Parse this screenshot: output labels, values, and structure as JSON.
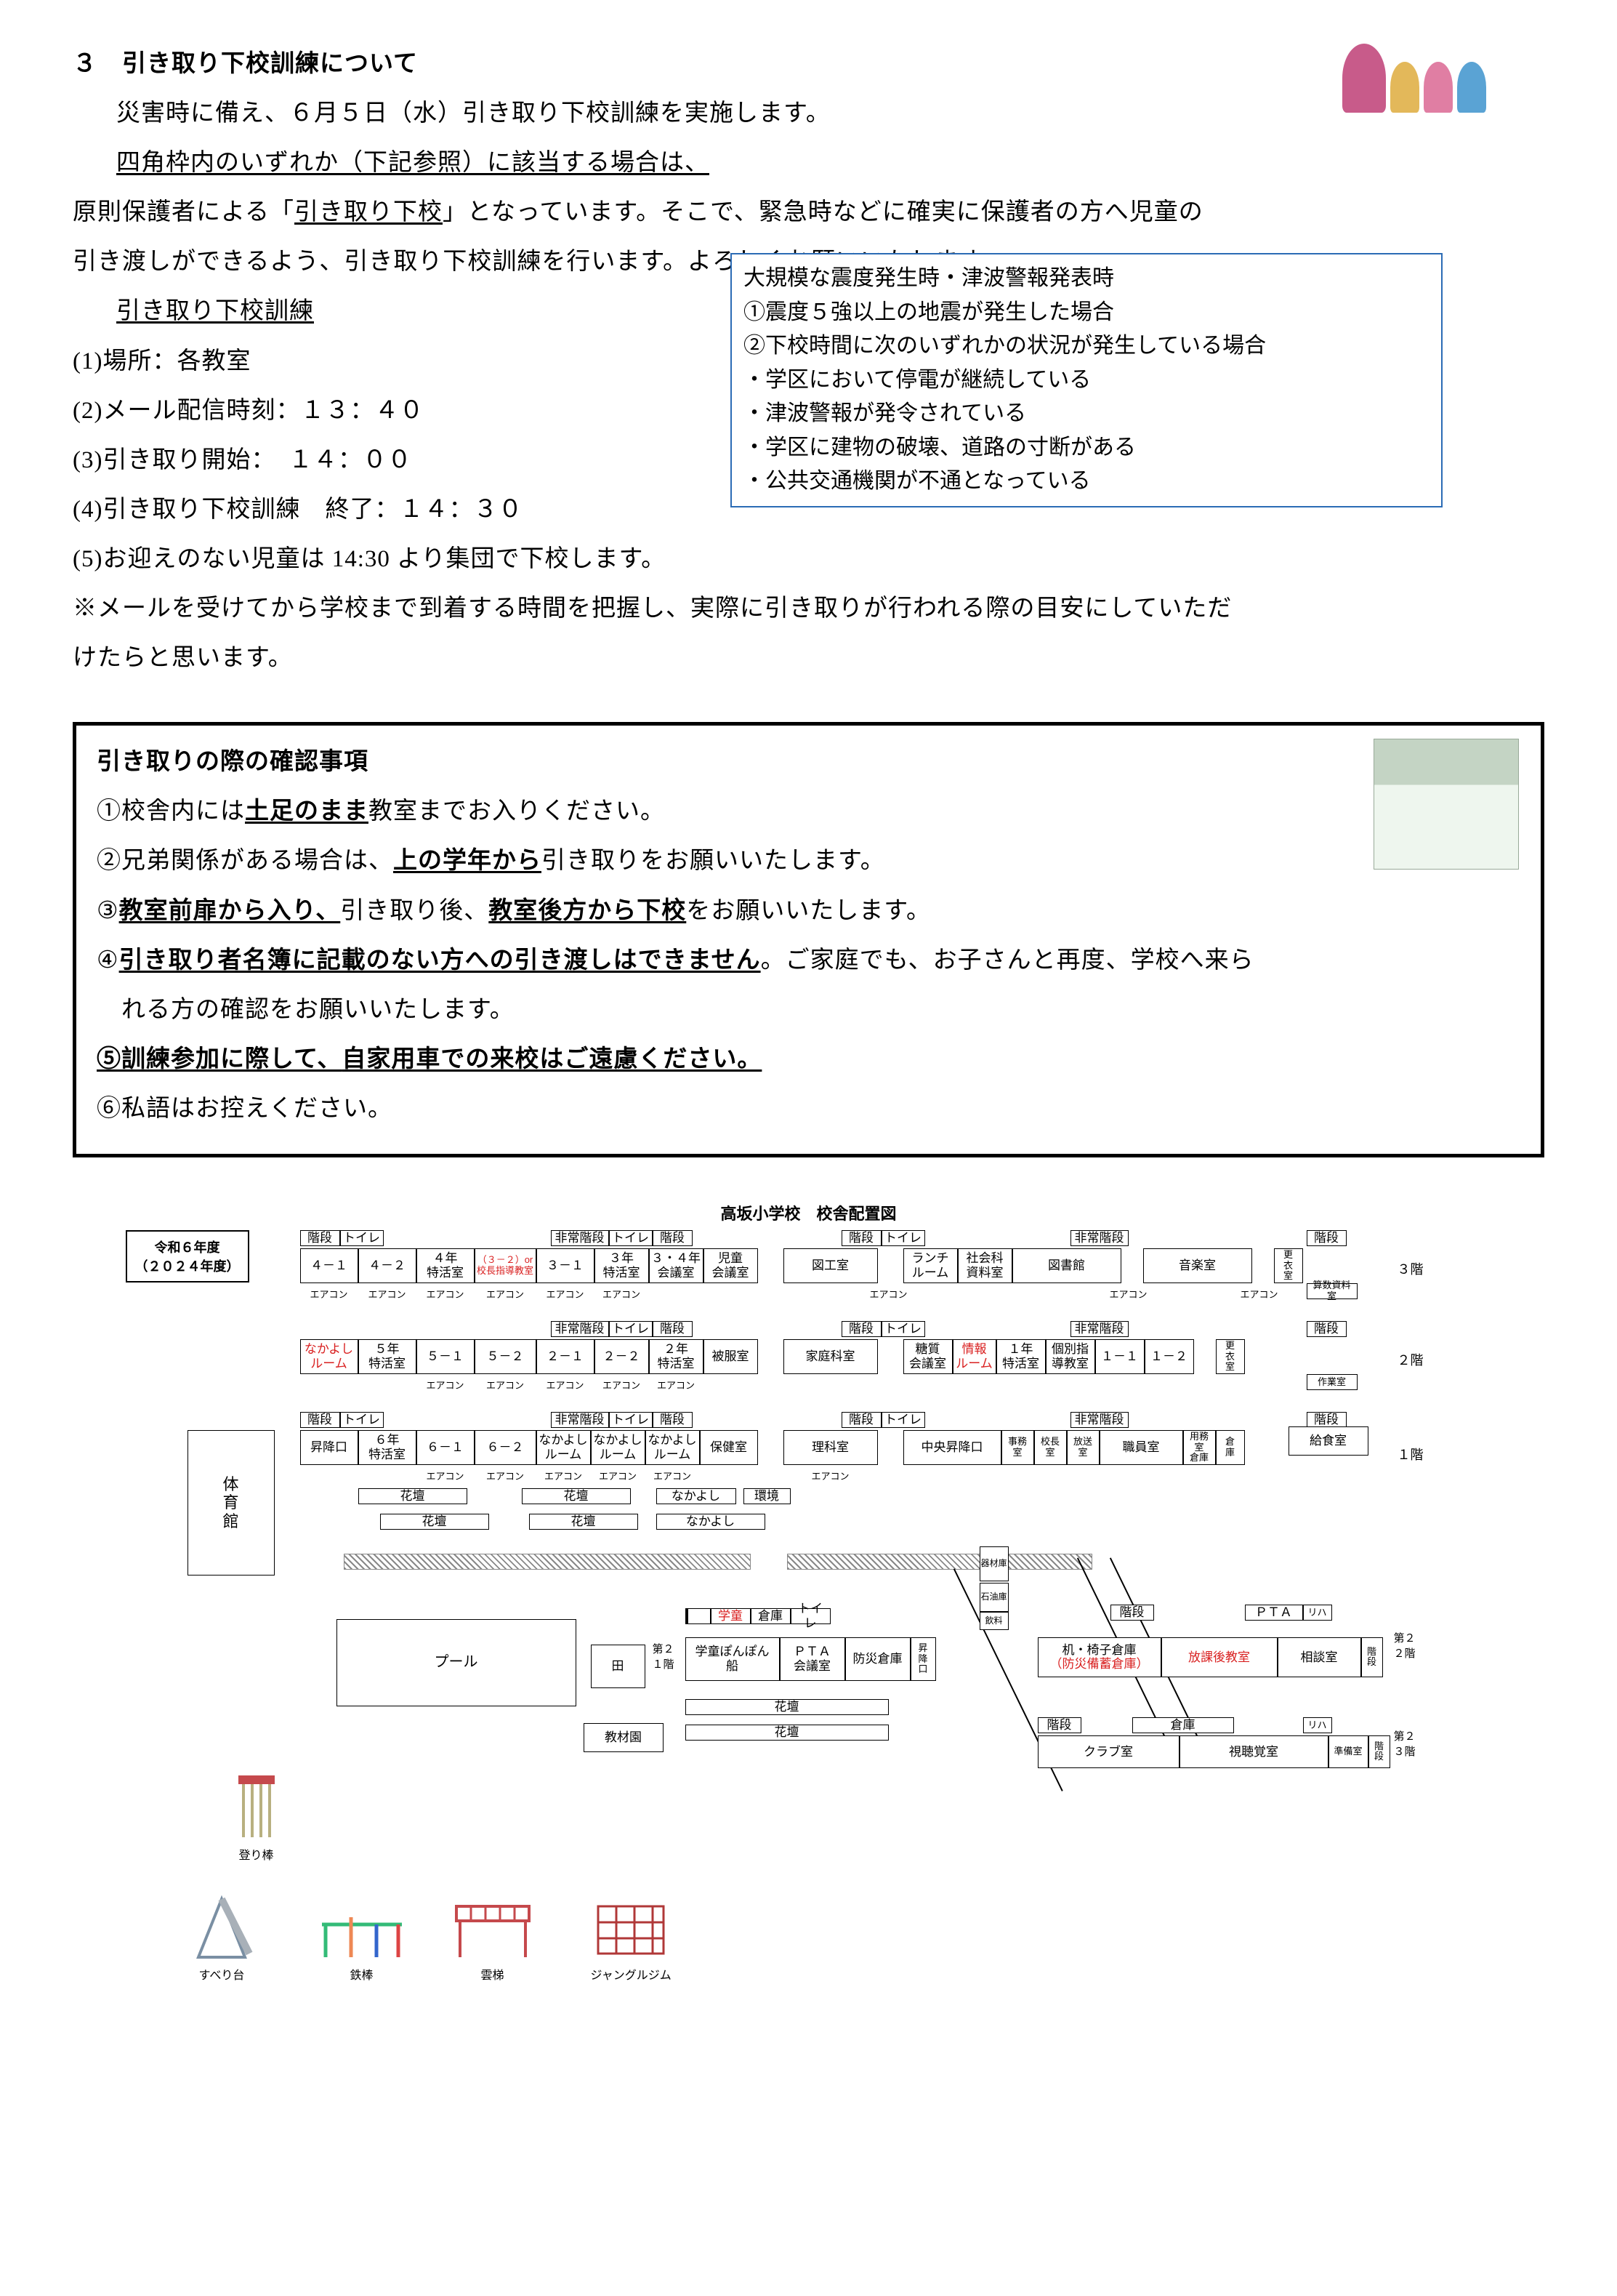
{
  "section_num": "３",
  "section_title": "引き取り下校訓練について",
  "p1": "災害時に備え、６月５日（水）引き取り下校訓練を実施します。",
  "p2": "四角枠内のいずれか（下記参照）に該当する場合は、",
  "p3a": "原則保護者による「",
  "p3b": "引き取り下校",
  "p3c": "」となっています。そこで、緊急時などに確実に保護者の方へ児童の",
  "p4": "引き渡しができるよう、引き取り下校訓練を行います。よろしくお願いいたします。",
  "drill_title": "引き取り下校訓練",
  "d1": "(1)場所：各教室",
  "d2": "(2)メール配信時刻：１３：４０",
  "d3": "(3)引き取り開始：　１４：００",
  "d4": "(4)引き取り下校訓練　終了：１４：３０",
  "d5": "(5)お迎えのない児童は 14:30 より集団で下校します。",
  "note1": "※メールを受けてから学校まで到着する時間を把握し、実際に引き取りが行われる際の目安にしていただ",
  "note2": "けたらと思います。",
  "bluebox": [
    "大規模な震度発生時・津波警報発表時",
    "①震度５強以上の地震が発生した場合",
    "②下校時間に次のいずれかの状況が発生している場合",
    "・学区において停電が継続している",
    "・津波警報が発令されている",
    "・学区に建物の破壊、道路の寸断がある",
    "・公共交通機関が不通となっている"
  ],
  "confirm_title": "引き取りの際の確認事項",
  "c1a": "①校舎内には",
  "c1b": "土足のまま",
  "c1c": "教室までお入りください。",
  "c2a": "②兄弟関係がある場合は、",
  "c2b": "上の学年から",
  "c2c": "引き取りをお願いいたします。",
  "c3a": "③",
  "c3b": "教室前扉から入り、",
  "c3c": "引き取り後、",
  "c3d": "教室後方から下校",
  "c3e": "をお願いいたします。",
  "c4a": "④",
  "c4b": "引き取り者名簿に記載のない方への引き渡しはできません",
  "c4c": "。ご家庭でも、お子さんと再度、学校へ来ら",
  "c4d": "　れる方の確認をお願いいたします。",
  "c5a": "⑤訓練参加に際して、",
  "c5b": "自家用車での来校はご遠慮ください。",
  "c6": "⑥私語はお控えください。",
  "map_title": "高坂小学校　校舎配置図",
  "year_l1": "令和６年度",
  "year_l2": "（２０２４年度）",
  "f3_upper": [
    "階段",
    "トイレ",
    "",
    "非常階段",
    "トイレ",
    "階段",
    "",
    "階段",
    "トイレ",
    "",
    "非常階段",
    "",
    "階段"
  ],
  "f3": [
    "４－１",
    "４－２",
    "４年\n特活室",
    "（３－２）or\n校長指導教室",
    "３－１",
    "３年\n特活室",
    "３・４年\n会議室",
    "児童\n会議室",
    "図工室",
    "ランチ\nルーム",
    "社会科\n資料室",
    "図書館",
    "音楽室"
  ],
  "f3_side": "更\n衣\n室",
  "f3_side2": "算数資料室",
  "f3_ac": "エアコン",
  "lbl_3f": "３階",
  "f2_upper": [
    "",
    "",
    "非常階段",
    "トイレ",
    "階段",
    "",
    "階段",
    "トイレ",
    "",
    "非常階段",
    "",
    "階段"
  ],
  "f2": [
    "なかよし\nルーム",
    "５年\n特活室",
    "５－１",
    "５－２",
    "２－１",
    "２－２",
    "２年\n特活室",
    "被服室",
    "家庭科室",
    "糖質\n会議室",
    "情報\nルーム",
    "１年\n特活室",
    "個別指\n導教室",
    "１－１",
    "１－２"
  ],
  "f2_side": "更\n衣\n室",
  "f2_side2": "作業室",
  "lbl_2f": "２階",
  "f1_upper": [
    "階段",
    "トイレ",
    "",
    "非常階段",
    "トイレ",
    "階段",
    "",
    "階段",
    "トイレ",
    "",
    "非常階段",
    "",
    "階段"
  ],
  "f1": [
    "昇降口",
    "６年\n特活室",
    "６－１",
    "６－２",
    "なかよし\nルーム",
    "なかよし\nルーム",
    "なかよし\nルーム",
    "保健室",
    "理科室",
    "中央昇降口",
    "事務\n室",
    "校長\n室",
    "放送\n室",
    "職員室",
    "用務\n室\n倉庫",
    "倉\n庫"
  ],
  "f1_kadan": "花壇",
  "f1_naka": "なかよし",
  "f1_kankyou": "環境",
  "lbl_1f": "１階",
  "kyushoku": "給食室",
  "taiikukan": "体\n育\n館",
  "pool": "プール",
  "ta": "田",
  "dai2_1f": "第２\n１階",
  "gakudo": "学童",
  "souko": "倉庫",
  "toilet": "トイレ",
  "gakudo_ponpon": "学童ぽんぽん\n船",
  "pta": "ＰＴＡ\n会議室",
  "bousai": "防災倉庫",
  "syoukou": "昇\n降\n口",
  "kadan": "花壇",
  "kyouzai": "教材園",
  "tukue_store": "机・椅子倉庫\n（防災備蓄倉庫）",
  "houkago": "放課後教室",
  "soudan": "相談室",
  "kaidan": "階\n段",
  "kaidan_h": "階段",
  "club": "クラブ室",
  "shichoukaku": "視聴覚室",
  "junbi": "準備室",
  "pta_h": "ＰＴＡ",
  "riha": "リハ",
  "inshi": "飲料",
  "sekiyu": "石油庫",
  "kizai": "器材庫",
  "dai2_2f": "第２\n２階",
  "dai2_3f": "第２\n３階",
  "play_nobori": "登り棒",
  "play_suberi": "すべり台",
  "play_tetsubo": "鉄棒",
  "play_unti": "雲梯",
  "play_jungle": "ジャングルジム"
}
